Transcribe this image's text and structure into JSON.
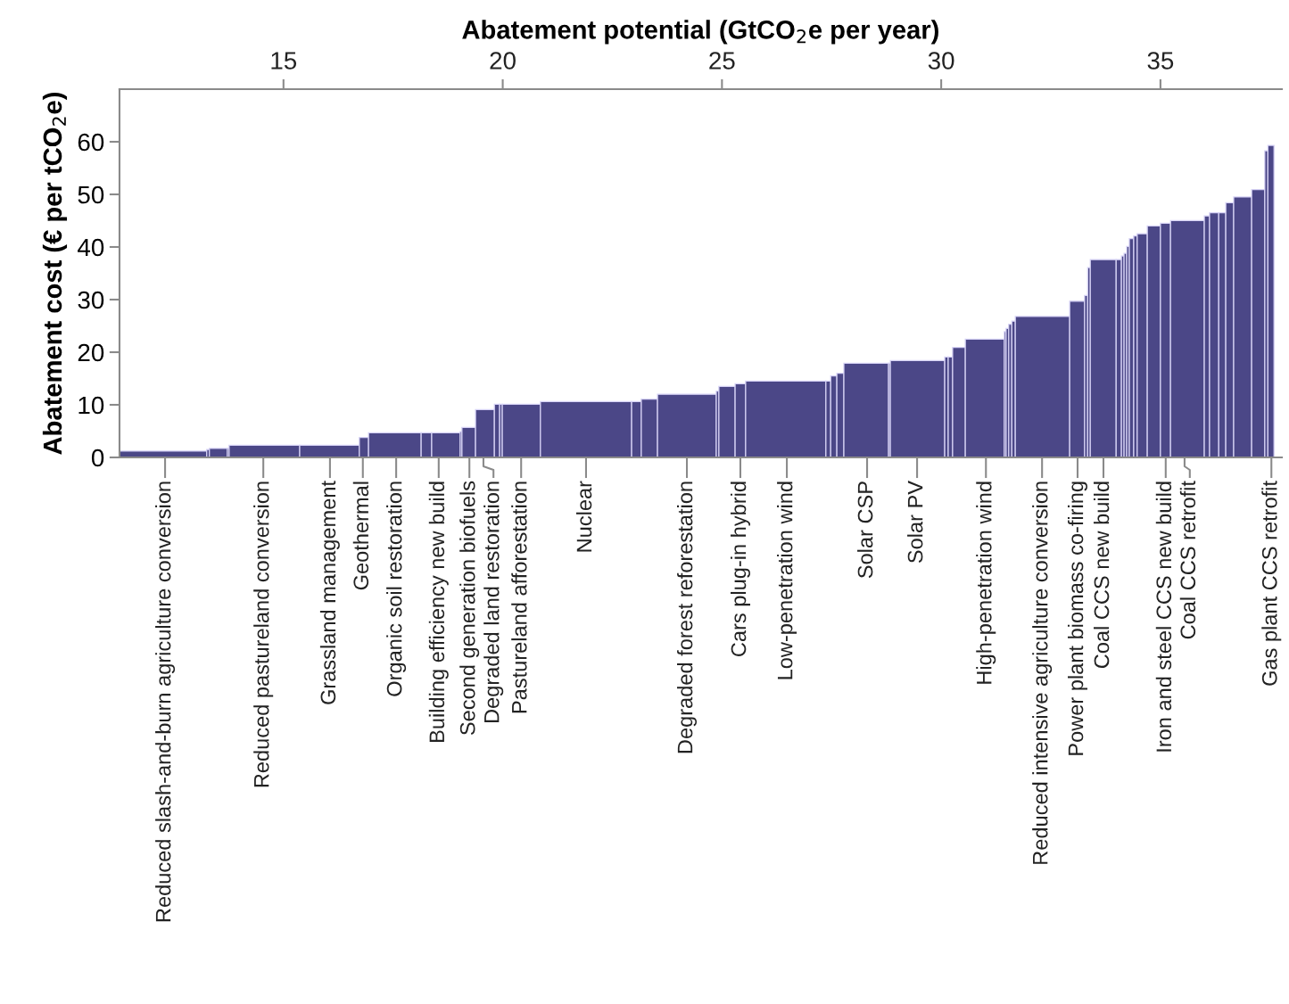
{
  "chart_data": {
    "type": "histogram",
    "xlabel": "Abatement potential (GtCO$_{2}$e per year)",
    "ylabel": "Abatement cost (€ per tCO$_{2}$e)",
    "color": "#4b4787",
    "bins": [
      11.26,
      13.25,
      13.31,
      13.72,
      13.76,
      15.37,
      16.73,
      16.94,
      18.14,
      18.38,
      19.03,
      19.07,
      19.38,
      19.81,
      19.93,
      19.99,
      20.86,
      22.94,
      23.16,
      23.53,
      24.87,
      24.93,
      25.3,
      25.54,
      27.37,
      27.48,
      27.62,
      27.78,
      28.8,
      28.84,
      30.08,
      30.16,
      30.26,
      30.55,
      31.44,
      31.48,
      31.54,
      31.61,
      31.69,
      32.93,
      33.27,
      33.34,
      33.4,
      33.99,
      34.11,
      34.17,
      34.23,
      34.29,
      34.39,
      34.47,
      34.7,
      35.0,
      35.23,
      36.0,
      36.12,
      36.33,
      36.49,
      36.67,
      37.08,
      37.38,
      37.45,
      37.59
    ],
    "values": [
      1.2,
      1.5,
      1.7,
      1.7,
      2.3,
      2.3,
      3.8,
      4.7,
      4.7,
      4.7,
      4.9,
      5.7,
      9.1,
      10.1,
      10.1,
      10.1,
      10.6,
      10.6,
      11.1,
      12.0,
      12.6,
      13.5,
      14.0,
      14.5,
      14.5,
      15.5,
      16.0,
      17.9,
      17.9,
      18.4,
      19.1,
      19.1,
      20.9,
      22.5,
      23.9,
      24.5,
      25.3,
      25.9,
      26.8,
      29.7,
      30.8,
      36.1,
      37.6,
      37.6,
      38.3,
      38.8,
      40.1,
      41.6,
      42.1,
      42.5,
      44.0,
      44.5,
      45.0,
      45.9,
      46.5,
      46.5,
      48.4,
      49.5,
      50.9,
      58.3,
      59.3
    ],
    "xlim": [
      11.26,
      37.77
    ],
    "xticks": [
      15,
      20,
      25,
      30,
      35
    ],
    "ylim": [
      0,
      70
    ],
    "yticks": [
      0,
      10,
      20,
      30,
      40,
      50,
      60
    ],
    "grid": false,
    "annotations": [
      {
        "text": "Reduced slash-and-burn agriculture conversion",
        "x": 12.3,
        "y": 0
      },
      {
        "text": "Reduced pastureland conversion",
        "x": 14.54,
        "y": 0
      },
      {
        "text": "Grassland management",
        "x": 16.06,
        "y": 0
      },
      {
        "text": "Geothermal",
        "x": 16.81,
        "y": 0
      },
      {
        "text": "Organic soil restoration",
        "x": 17.57,
        "y": 0
      },
      {
        "text": "Building efficiency new build",
        "x": 18.54,
        "y": 0
      },
      {
        "text": "Second generation biofuels",
        "x": 19.24,
        "y": 0
      },
      {
        "text": "Degraded land restoration",
        "x": 19.56,
        "y": 0
      },
      {
        "text": "Pastureland afforestation",
        "x": 20.42,
        "y": 0
      },
      {
        "text": "Nuclear",
        "x": 21.9,
        "y": 0
      },
      {
        "text": "Degraded forest reforestation",
        "x": 24.2,
        "y": 0
      },
      {
        "text": "Cars plug-in hybrid",
        "x": 25.42,
        "y": 0
      },
      {
        "text": "Low-penetration wind",
        "x": 26.48,
        "y": 0
      },
      {
        "text": "Solar CSP",
        "x": 28.31,
        "y": 0
      },
      {
        "text": "Solar PV",
        "x": 29.45,
        "y": 0
      },
      {
        "text": "High-penetration wind",
        "x": 31.02,
        "y": 0
      },
      {
        "text": "Reduced intensive agriculture conversion",
        "x": 32.3,
        "y": 0
      },
      {
        "text": "Power plant biomass co-firing",
        "x": 33.11,
        "y": 0
      },
      {
        "text": "Coal CCS new build",
        "x": 33.7,
        "y": 0
      },
      {
        "text": "Iron and steel CCS new build",
        "x": 35.12,
        "y": 0
      },
      {
        "text": "Coal CCS retrofit",
        "x": 35.55,
        "y": 0
      },
      {
        "text": "Gas plant CCS retrofit",
        "x": 37.53,
        "y": 0
      }
    ]
  }
}
